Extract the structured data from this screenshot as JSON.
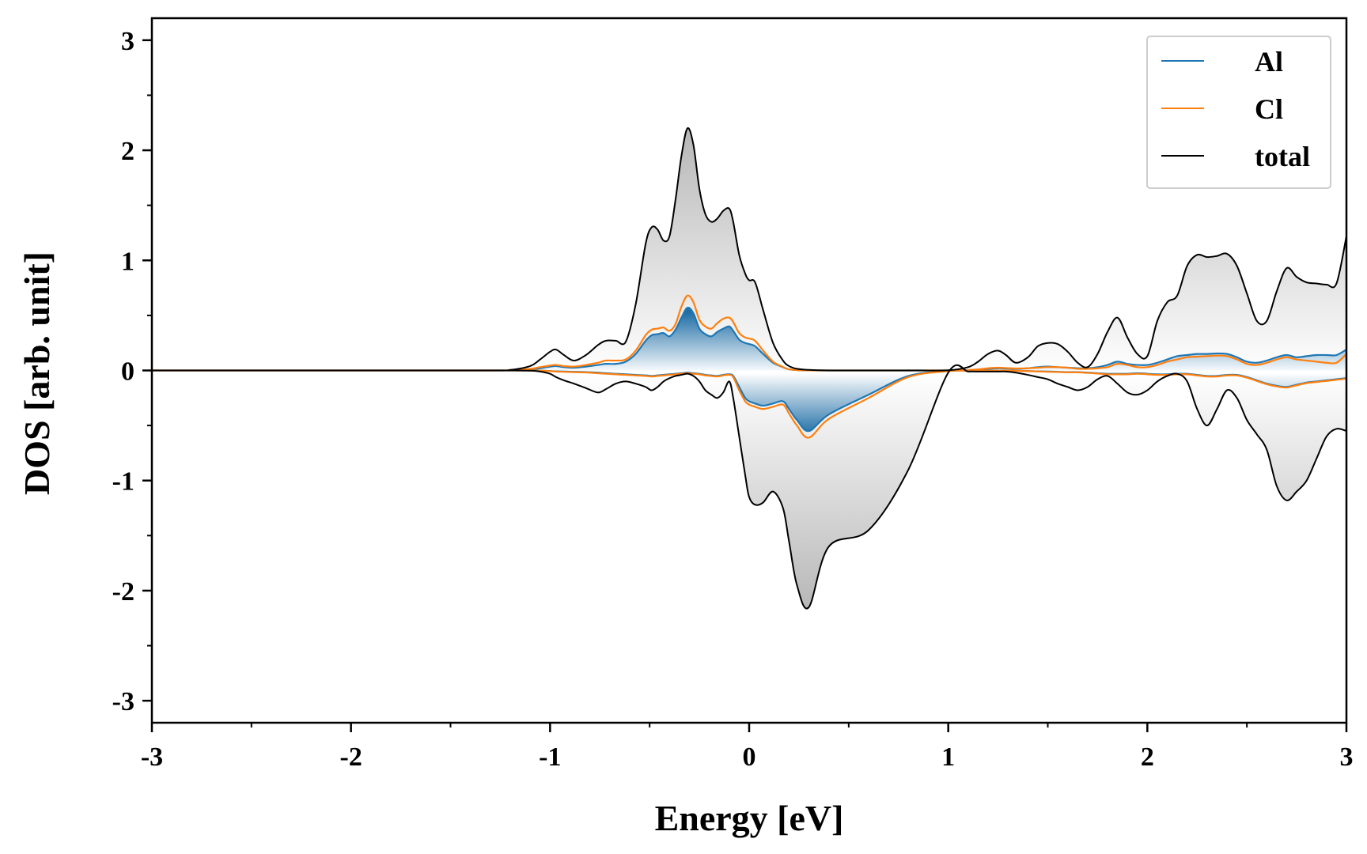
{
  "chart_data": {
    "type": "area",
    "xlabel": "Energy [eV]",
    "ylabel": "DOS [arb. unit]",
    "xlim": [
      -3,
      3
    ],
    "ylim": [
      -3.2,
      3.2
    ],
    "xticks": [
      -3,
      -2,
      -1,
      0,
      1,
      2,
      3
    ],
    "yticks": [
      -3,
      -2,
      -1,
      0,
      1,
      2,
      3
    ],
    "xtick_labels": [
      "-3",
      "-2",
      "-1",
      "0",
      "1",
      "2",
      "3"
    ],
    "ytick_labels": [
      "-3",
      "-2",
      "-1",
      "0",
      "1",
      "2",
      "3"
    ],
    "grid": false,
    "legend_position": "top-right",
    "x": [
      -3.0,
      -2.0,
      -1.3,
      -1.2,
      -1.1,
      -1.05,
      -1.0,
      -0.97,
      -0.93,
      -0.88,
      -0.82,
      -0.76,
      -0.72,
      -0.67,
      -0.62,
      -0.57,
      -0.52,
      -0.49,
      -0.46,
      -0.43,
      -0.4,
      -0.37,
      -0.34,
      -0.31,
      -0.28,
      -0.25,
      -0.22,
      -0.19,
      -0.16,
      -0.13,
      -0.1,
      -0.08,
      -0.05,
      -0.02,
      0.0,
      0.03,
      0.07,
      0.12,
      0.17,
      0.2,
      0.24,
      0.3,
      0.4,
      0.6,
      0.8,
      1.0,
      1.1,
      1.15,
      1.2,
      1.25,
      1.29,
      1.34,
      1.4,
      1.45,
      1.5,
      1.55,
      1.6,
      1.65,
      1.7,
      1.75,
      1.8,
      1.85,
      1.9,
      1.95,
      2.0,
      2.05,
      2.1,
      2.15,
      2.2,
      2.25,
      2.3,
      2.35,
      2.4,
      2.45,
      2.5,
      2.55,
      2.6,
      2.65,
      2.7,
      2.75,
      2.8,
      2.85,
      2.9,
      2.95,
      3.0
    ],
    "series": [
      {
        "name": "Al",
        "color": "#1f77b4",
        "role": "spin-up",
        "values": [
          0,
          0,
          0,
          0.002,
          0.01,
          0.02,
          0.035,
          0.04,
          0.03,
          0.025,
          0.035,
          0.05,
          0.06,
          0.06,
          0.08,
          0.15,
          0.27,
          0.32,
          0.33,
          0.34,
          0.31,
          0.37,
          0.48,
          0.57,
          0.52,
          0.38,
          0.33,
          0.31,
          0.35,
          0.38,
          0.4,
          0.36,
          0.28,
          0.25,
          0.24,
          0.22,
          0.15,
          0.07,
          0.03,
          0.01,
          0.003,
          0.001,
          0,
          0,
          0,
          0,
          0.003,
          0.008,
          0.015,
          0.02,
          0.018,
          0.015,
          0.02,
          0.03,
          0.035,
          0.03,
          0.025,
          0.02,
          0.02,
          0.03,
          0.05,
          0.08,
          0.06,
          0.05,
          0.05,
          0.07,
          0.1,
          0.13,
          0.14,
          0.15,
          0.15,
          0.155,
          0.15,
          0.12,
          0.08,
          0.07,
          0.09,
          0.12,
          0.14,
          0.12,
          0.13,
          0.14,
          0.14,
          0.14,
          0.19
        ]
      },
      {
        "name": "Cl",
        "color": "#ff7f0e",
        "role": "spin-up",
        "values": [
          0,
          0,
          0,
          0.003,
          0.015,
          0.03,
          0.045,
          0.05,
          0.04,
          0.035,
          0.05,
          0.07,
          0.09,
          0.09,
          0.1,
          0.18,
          0.32,
          0.37,
          0.38,
          0.39,
          0.36,
          0.42,
          0.58,
          0.68,
          0.62,
          0.46,
          0.4,
          0.38,
          0.43,
          0.47,
          0.48,
          0.44,
          0.34,
          0.3,
          0.29,
          0.27,
          0.18,
          0.08,
          0.03,
          0.01,
          0.003,
          0.001,
          0,
          0,
          0,
          0,
          0.004,
          0.01,
          0.02,
          0.025,
          0.022,
          0.018,
          0.02,
          0.025,
          0.03,
          0.03,
          0.025,
          0.015,
          0.015,
          0.02,
          0.03,
          0.06,
          0.05,
          0.03,
          0.03,
          0.05,
          0.08,
          0.1,
          0.12,
          0.125,
          0.13,
          0.135,
          0.13,
          0.1,
          0.06,
          0.05,
          0.07,
          0.1,
          0.12,
          0.1,
          0.09,
          0.08,
          0.07,
          0.07,
          0.15
        ]
      },
      {
        "name": "total",
        "color": "#000000",
        "role": "spin-up",
        "values": [
          0,
          0,
          0,
          0.005,
          0.04,
          0.1,
          0.17,
          0.19,
          0.14,
          0.09,
          0.14,
          0.23,
          0.27,
          0.27,
          0.26,
          0.6,
          1.15,
          1.3,
          1.28,
          1.18,
          1.22,
          1.55,
          1.95,
          2.2,
          2.05,
          1.65,
          1.42,
          1.35,
          1.38,
          1.45,
          1.47,
          1.35,
          1.05,
          0.88,
          0.82,
          0.8,
          0.55,
          0.25,
          0.09,
          0.04,
          0.015,
          0.005,
          0,
          0,
          0,
          0.002,
          0.03,
          0.08,
          0.15,
          0.18,
          0.14,
          0.07,
          0.12,
          0.22,
          0.25,
          0.24,
          0.17,
          0.07,
          0.03,
          0.15,
          0.35,
          0.48,
          0.3,
          0.15,
          0.13,
          0.45,
          0.62,
          0.68,
          0.95,
          1.05,
          1.03,
          1.04,
          1.06,
          0.95,
          0.7,
          0.45,
          0.45,
          0.72,
          0.93,
          0.85,
          0.8,
          0.79,
          0.78,
          0.79,
          1.22
        ]
      },
      {
        "name": "Al",
        "color": "#1f77b4",
        "role": "spin-down",
        "values": [
          0,
          0,
          0,
          0,
          0,
          -0.002,
          -0.005,
          -0.008,
          -0.01,
          -0.012,
          -0.015,
          -0.02,
          -0.025,
          -0.03,
          -0.035,
          -0.04,
          -0.045,
          -0.05,
          -0.045,
          -0.04,
          -0.035,
          -0.03,
          -0.025,
          -0.02,
          -0.025,
          -0.03,
          -0.04,
          -0.045,
          -0.05,
          -0.04,
          -0.035,
          -0.05,
          -0.15,
          -0.25,
          -0.28,
          -0.3,
          -0.32,
          -0.3,
          -0.28,
          -0.35,
          -0.45,
          -0.55,
          -0.4,
          -0.22,
          -0.05,
          -0.005,
          -0.002,
          -0.002,
          -0.002,
          -0.002,
          -0.002,
          -0.003,
          -0.005,
          -0.008,
          -0.01,
          -0.012,
          -0.015,
          -0.015,
          -0.02,
          -0.025,
          -0.03,
          -0.03,
          -0.03,
          -0.025,
          -0.03,
          -0.035,
          -0.035,
          -0.03,
          -0.03,
          -0.04,
          -0.05,
          -0.05,
          -0.04,
          -0.04,
          -0.06,
          -0.09,
          -0.12,
          -0.14,
          -0.15,
          -0.13,
          -0.11,
          -0.1,
          -0.09,
          -0.08,
          -0.07
        ]
      },
      {
        "name": "Cl",
        "color": "#ff7f0e",
        "role": "spin-down",
        "values": [
          0,
          0,
          0,
          0,
          0,
          -0.002,
          -0.006,
          -0.01,
          -0.012,
          -0.015,
          -0.018,
          -0.025,
          -0.03,
          -0.035,
          -0.04,
          -0.045,
          -0.05,
          -0.055,
          -0.05,
          -0.045,
          -0.04,
          -0.035,
          -0.03,
          -0.025,
          -0.03,
          -0.035,
          -0.045,
          -0.05,
          -0.055,
          -0.045,
          -0.04,
          -0.06,
          -0.18,
          -0.28,
          -0.31,
          -0.33,
          -0.35,
          -0.33,
          -0.31,
          -0.39,
          -0.5,
          -0.61,
          -0.44,
          -0.25,
          -0.06,
          -0.006,
          -0.002,
          -0.002,
          -0.002,
          -0.002,
          -0.002,
          -0.003,
          -0.006,
          -0.009,
          -0.012,
          -0.014,
          -0.017,
          -0.017,
          -0.022,
          -0.028,
          -0.035,
          -0.035,
          -0.035,
          -0.03,
          -0.035,
          -0.04,
          -0.04,
          -0.035,
          -0.035,
          -0.045,
          -0.055,
          -0.055,
          -0.045,
          -0.045,
          -0.065,
          -0.095,
          -0.125,
          -0.145,
          -0.155,
          -0.135,
          -0.115,
          -0.105,
          -0.095,
          -0.085,
          -0.075
        ]
      },
      {
        "name": "total",
        "color": "#000000",
        "role": "spin-down",
        "values": [
          0,
          0,
          0,
          0,
          -0.002,
          -0.01,
          -0.03,
          -0.06,
          -0.09,
          -0.12,
          -0.16,
          -0.2,
          -0.17,
          -0.12,
          -0.1,
          -0.12,
          -0.15,
          -0.18,
          -0.15,
          -0.1,
          -0.07,
          -0.05,
          -0.04,
          -0.03,
          -0.05,
          -0.1,
          -0.18,
          -0.22,
          -0.25,
          -0.2,
          -0.1,
          -0.25,
          -0.6,
          -0.95,
          -1.15,
          -1.22,
          -1.2,
          -1.1,
          -1.25,
          -1.55,
          -1.95,
          -2.15,
          -1.6,
          -1.45,
          -0.9,
          -0.02,
          -0.01,
          -0.01,
          -0.01,
          -0.01,
          -0.01,
          -0.02,
          -0.04,
          -0.06,
          -0.08,
          -0.12,
          -0.15,
          -0.18,
          -0.15,
          -0.08,
          -0.05,
          -0.12,
          -0.2,
          -0.22,
          -0.18,
          -0.1,
          -0.05,
          -0.03,
          -0.1,
          -0.35,
          -0.5,
          -0.35,
          -0.18,
          -0.25,
          -0.45,
          -0.58,
          -0.72,
          -1.05,
          -1.18,
          -1.1,
          -1.0,
          -0.8,
          -0.6,
          -0.53,
          -0.55
        ]
      }
    ],
    "legend": [
      {
        "label": "Al",
        "color": "#1f77b4"
      },
      {
        "label": "Cl",
        "color": "#ff7f0e"
      },
      {
        "label": "total",
        "color": "#000000"
      }
    ]
  }
}
